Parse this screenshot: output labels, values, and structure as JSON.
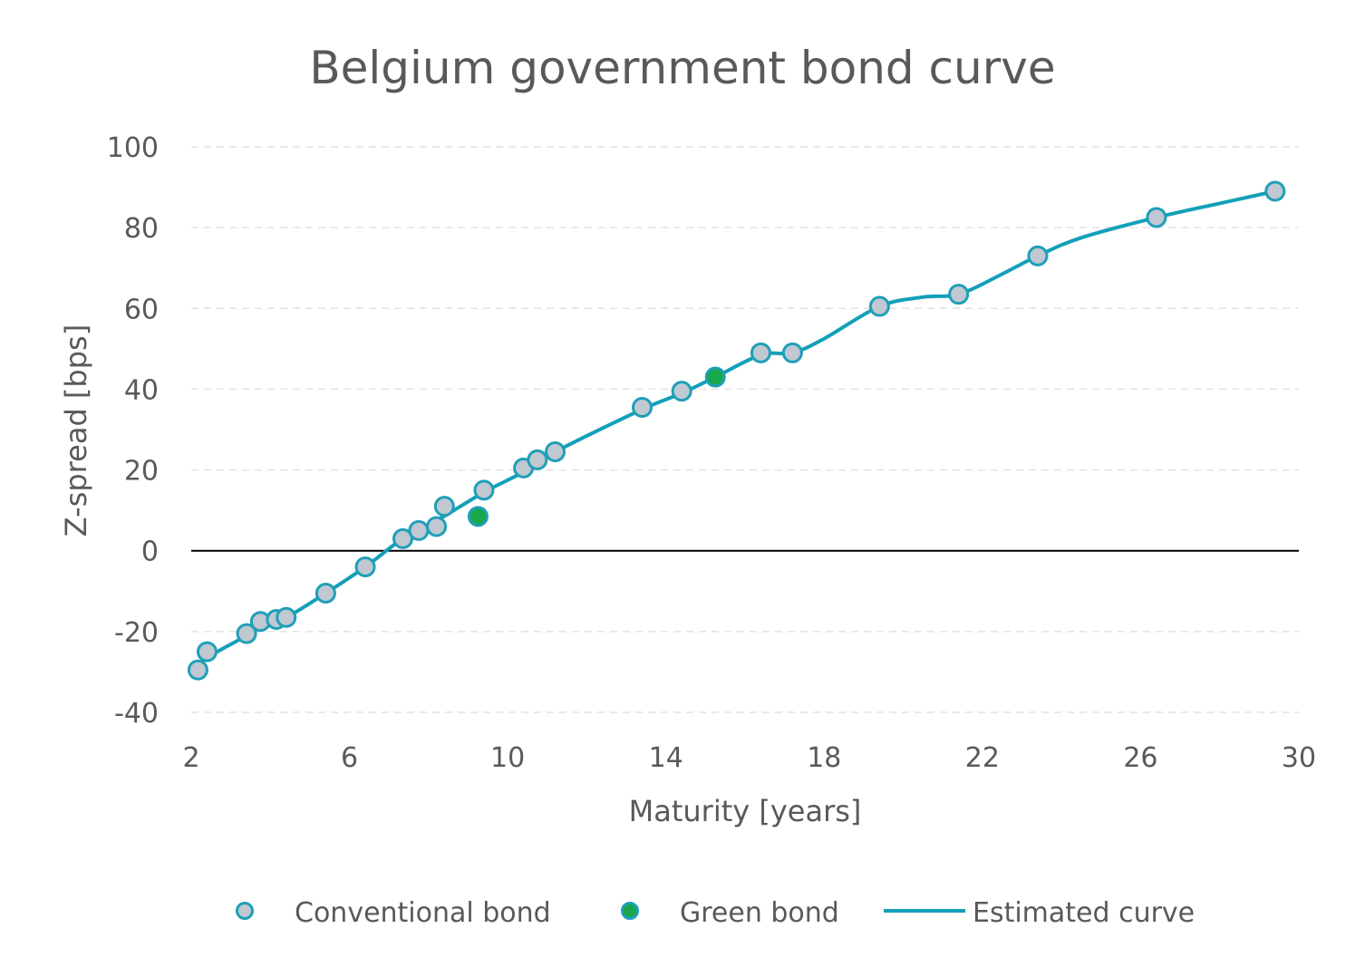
{
  "chart_data": {
    "type": "scatter",
    "title": "Belgium government bond curve",
    "xlabel": "Maturity [years]",
    "ylabel": "Z-spread [bps]",
    "xlim": [
      2,
      30
    ],
    "ylim": [
      -40,
      100
    ],
    "x_ticks": [
      "2",
      "6",
      "10",
      "14",
      "18",
      "22",
      "26",
      "30"
    ],
    "y_ticks": [
      "100",
      "80",
      "60",
      "40",
      "20",
      "0",
      "-20",
      "-40"
    ],
    "grid": "horizontal dashed",
    "legend_position": "bottom",
    "colors": {
      "conventional_fill": "#c0c8d2",
      "conventional_stroke": "#1f9fb8",
      "green_fill": "#18a84a",
      "curve": "#12a0b8",
      "text": "#595959"
    },
    "series": [
      {
        "name": "Conventional bond",
        "type": "scatter",
        "points": [
          [
            2.17,
            -29.5
          ],
          [
            2.4,
            -25
          ],
          [
            3.4,
            -20.5
          ],
          [
            3.75,
            -17.5
          ],
          [
            4.15,
            -17
          ],
          [
            4.4,
            -16.5
          ],
          [
            5.4,
            -10.5
          ],
          [
            6.4,
            -4
          ],
          [
            7.35,
            3
          ],
          [
            7.75,
            5
          ],
          [
            8.2,
            6
          ],
          [
            8.4,
            11
          ],
          [
            9.4,
            15
          ],
          [
            10.4,
            20.5
          ],
          [
            10.75,
            22.5
          ],
          [
            11.2,
            24.5
          ],
          [
            13.4,
            35.5
          ],
          [
            14.4,
            39.5
          ],
          [
            16.4,
            49
          ],
          [
            17.2,
            49
          ],
          [
            19.4,
            60.5
          ],
          [
            21.4,
            63.5
          ],
          [
            23.4,
            73
          ],
          [
            26.4,
            82.5
          ],
          [
            29.4,
            89
          ]
        ]
      },
      {
        "name": "Green bond",
        "type": "scatter",
        "points": [
          [
            9.25,
            8.5
          ],
          [
            15.25,
            43
          ]
        ]
      },
      {
        "name": "Estimated curve",
        "type": "line",
        "points": [
          [
            2.17,
            -29.5
          ],
          [
            2.4,
            -26.5
          ],
          [
            3.4,
            -21
          ],
          [
            3.75,
            -18.5
          ],
          [
            4.4,
            -16.5
          ],
          [
            5.4,
            -10.5
          ],
          [
            6.4,
            -4
          ],
          [
            7.35,
            3
          ],
          [
            8.3,
            8
          ],
          [
            9.4,
            14.5
          ],
          [
            10.4,
            19.5
          ],
          [
            11.2,
            24.5
          ],
          [
            13.4,
            35
          ],
          [
            14.4,
            39
          ],
          [
            15.25,
            43
          ],
          [
            16.4,
            48.5
          ],
          [
            17.2,
            49
          ],
          [
            18.0,
            52.5
          ],
          [
            19.4,
            60.5
          ],
          [
            20.5,
            62.8
          ],
          [
            21.4,
            63.5
          ],
          [
            22.4,
            68
          ],
          [
            23.4,
            73
          ],
          [
            24.5,
            77.5
          ],
          [
            26.4,
            82.5
          ],
          [
            28.0,
            86
          ],
          [
            29.4,
            89
          ]
        ]
      }
    ]
  }
}
